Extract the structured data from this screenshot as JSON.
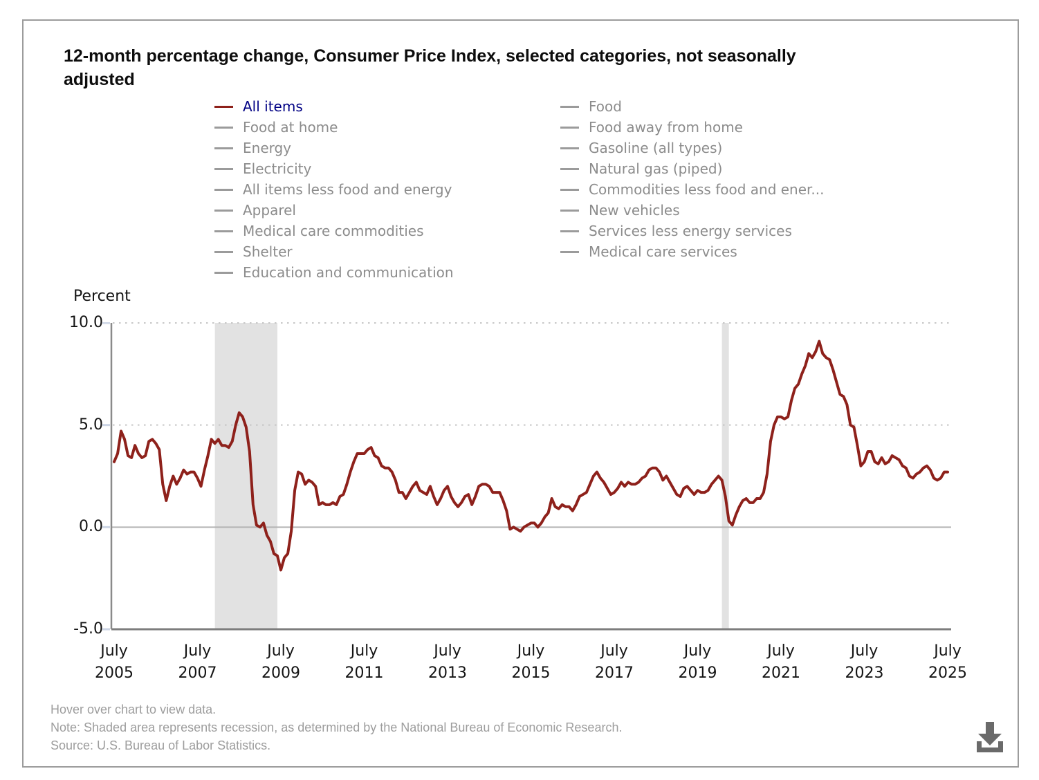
{
  "title": "12-month percentage change, Consumer Price Index, selected categories, not seasonally adjusted",
  "title_lines": [
    "12-month percentage change, Consumer Price Index, selected categories, not seasonally",
    "adjusted"
  ],
  "legend": {
    "columns": [
      {
        "items": [
          {
            "label": "All items",
            "swatch": "#8e211b",
            "text_color": "#000084",
            "selected": true
          },
          {
            "label": "Food at home"
          },
          {
            "label": "Energy"
          },
          {
            "label": "Electricity"
          },
          {
            "label": "All items less food and energy"
          },
          {
            "label": "Apparel"
          },
          {
            "label": "Medical care commodities"
          },
          {
            "label": "Shelter"
          },
          {
            "label": "Education and communication"
          }
        ]
      },
      {
        "items": [
          {
            "label": "Food"
          },
          {
            "label": "Food away from home"
          },
          {
            "label": "Gasoline (all types)"
          },
          {
            "label": "Natural gas (piped)"
          },
          {
            "label": "Commodities less food and ener..."
          },
          {
            "label": "New vehicles"
          },
          {
            "label": "Services less energy services"
          },
          {
            "label": "Medical care services"
          }
        ]
      }
    ]
  },
  "axis": {
    "y_label": "Percent",
    "y_ticks": [
      {
        "label": "10.0",
        "value": 10
      },
      {
        "label": "5.0",
        "value": 5
      },
      {
        "label": "0.0",
        "value": 0
      },
      {
        "label": "-5.0",
        "value": -5
      }
    ],
    "x_tick_month": "July",
    "x_tick_years": [
      "2005",
      "2007",
      "2009",
      "2011",
      "2013",
      "2015",
      "2017",
      "2019",
      "2021",
      "2023",
      "2025"
    ]
  },
  "chart_data": {
    "type": "line",
    "title": "12-month percentage change, Consumer Price Index, selected categories, not seasonally adjusted",
    "ylabel": "Percent",
    "ylim": [
      -5,
      10
    ],
    "gridlines": {
      "dotted_at": [
        10,
        5
      ],
      "solid_at": [
        0
      ],
      "axis_at": -5
    },
    "x_start": "2005-07",
    "x_end": "2025-07",
    "frequency": "monthly",
    "legend_position": "top",
    "colors": {
      "line": "#8e211b",
      "recession_band": "#e2e2e2",
      "dotted_grid": "#c6c6c6",
      "zero_line": "#b3b3b3",
      "axis": "#7d7d7d",
      "tick_dash": "#ccd5e5"
    },
    "recessions": [
      {
        "from": "2007-12",
        "to": "2009-06"
      },
      {
        "from": "2020-02",
        "to": "2020-04"
      }
    ],
    "series": [
      {
        "name": "All items",
        "values": [
          3.2,
          3.6,
          4.7,
          4.3,
          3.5,
          3.4,
          4.0,
          3.6,
          3.4,
          3.5,
          4.2,
          4.3,
          4.1,
          3.8,
          2.1,
          1.3,
          2.0,
          2.5,
          2.1,
          2.4,
          2.8,
          2.6,
          2.7,
          2.7,
          2.4,
          2.0,
          2.8,
          3.5,
          4.3,
          4.1,
          4.3,
          4.0,
          4.0,
          3.9,
          4.2,
          5.0,
          5.6,
          5.4,
          4.9,
          3.7,
          1.1,
          0.1,
          0.0,
          0.2,
          -0.4,
          -0.7,
          -1.3,
          -1.4,
          -2.1,
          -1.5,
          -1.3,
          -0.2,
          1.8,
          2.7,
          2.6,
          2.1,
          2.3,
          2.2,
          2.0,
          1.1,
          1.2,
          1.1,
          1.1,
          1.2,
          1.1,
          1.5,
          1.6,
          2.1,
          2.7,
          3.2,
          3.6,
          3.6,
          3.6,
          3.8,
          3.9,
          3.5,
          3.4,
          3.0,
          2.9,
          2.9,
          2.7,
          2.3,
          1.7,
          1.7,
          1.4,
          1.7,
          2.0,
          2.2,
          1.8,
          1.7,
          1.6,
          2.0,
          1.5,
          1.1,
          1.4,
          1.8,
          2.0,
          1.5,
          1.2,
          1.0,
          1.2,
          1.5,
          1.6,
          1.1,
          1.5,
          2.0,
          2.1,
          2.1,
          2.0,
          1.7,
          1.7,
          1.7,
          1.3,
          0.8,
          -0.1,
          0.0,
          -0.1,
          -0.2,
          0.0,
          0.1,
          0.2,
          0.2,
          0.0,
          0.2,
          0.5,
          0.7,
          1.4,
          1.0,
          0.9,
          1.1,
          1.0,
          1.0,
          0.8,
          1.1,
          1.5,
          1.6,
          1.7,
          2.1,
          2.5,
          2.7,
          2.4,
          2.2,
          1.9,
          1.6,
          1.7,
          1.9,
          2.2,
          2.0,
          2.2,
          2.1,
          2.1,
          2.2,
          2.4,
          2.5,
          2.8,
          2.9,
          2.9,
          2.7,
          2.3,
          2.5,
          2.2,
          1.9,
          1.6,
          1.5,
          1.9,
          2.0,
          1.8,
          1.6,
          1.8,
          1.7,
          1.7,
          1.8,
          2.1,
          2.3,
          2.5,
          2.3,
          1.5,
          0.3,
          0.1,
          0.6,
          1.0,
          1.3,
          1.4,
          1.2,
          1.2,
          1.4,
          1.4,
          1.7,
          2.6,
          4.2,
          5.0,
          5.4,
          5.4,
          5.3,
          5.4,
          6.2,
          6.8,
          7.0,
          7.5,
          7.9,
          8.5,
          8.3,
          8.6,
          9.1,
          8.5,
          8.3,
          8.2,
          7.7,
          7.1,
          6.5,
          6.4,
          6.0,
          5.0,
          4.9,
          4.0,
          3.0,
          3.2,
          3.7,
          3.7,
          3.2,
          3.1,
          3.4,
          3.1,
          3.2,
          3.5,
          3.4,
          3.3,
          3.0,
          2.9,
          2.5,
          2.4,
          2.6,
          2.7,
          2.9,
          3.0,
          2.8,
          2.4,
          2.3,
          2.4,
          2.7,
          2.7
        ]
      }
    ]
  },
  "footer": {
    "hover": "Hover over chart to view data.",
    "note": "Note: Shaded area represents recession, as determined by the National Bureau of Economic Research.",
    "source": "Source: U.S. Bureau of Labor Statistics."
  }
}
